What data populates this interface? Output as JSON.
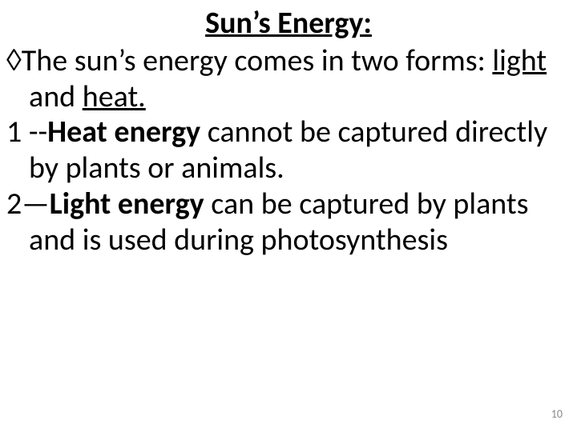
{
  "title": "Sun’s Energy:",
  "line1_bullet": "◊",
  "line1_a": "The sun’s energy comes in two forms: ",
  "line1_light": "light",
  "line1_mid": " and ",
  "line1_heat": "heat.",
  "line2_prefix": "1 --",
  "line2_bold": "Heat energy",
  "line2_rest": " cannot be captured directly by plants or animals.",
  "line3_prefix": "2—",
  "line3_bold": "Light energy",
  "line3_rest": " can be captured by plants and is used during photosynthesis",
  "page_number": "10",
  "colors": {
    "text": "#000000",
    "page_num": "#8a8a8a",
    "background": "#ffffff"
  },
  "fontsize": {
    "title": 38,
    "body": 38,
    "page_num": 14
  }
}
